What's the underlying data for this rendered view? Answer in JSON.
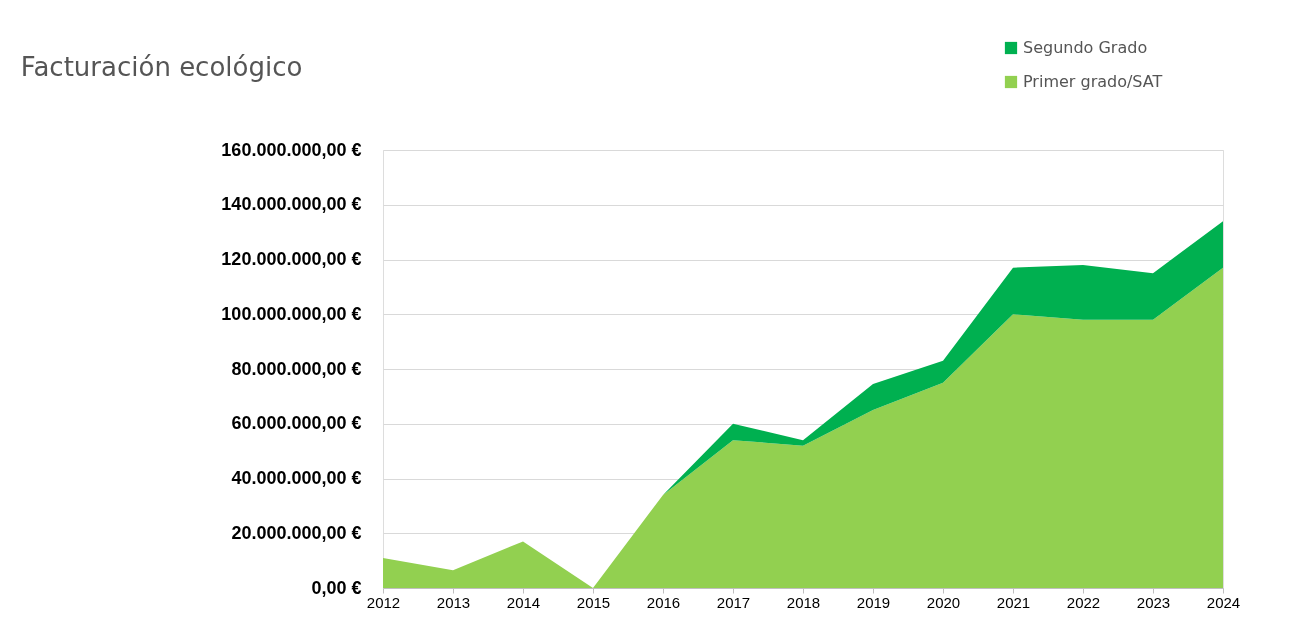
{
  "chart_data": {
    "type": "area",
    "title": "Facturación ecológico",
    "stacked": true,
    "categories": [
      "2012",
      "2013",
      "2014",
      "2015",
      "2016",
      "2017",
      "2018",
      "2019",
      "2020",
      "2021",
      "2022",
      "2023",
      "2024"
    ],
    "series": [
      {
        "name": "Primer grado/SAT",
        "color": "#92d050",
        "values": [
          11000000,
          6500000,
          17000000,
          0,
          34000000,
          54000000,
          52000000,
          65000000,
          75000000,
          100000000,
          98000000,
          98000000,
          117000000
        ]
      },
      {
        "name": "Segundo Grado",
        "color": "#00b050",
        "values": [
          0,
          0,
          0,
          0,
          0,
          6000000,
          2000000,
          9500000,
          8000000,
          17000000,
          20000000,
          17000000,
          17000000
        ]
      }
    ],
    "ylim": [
      0,
      160000000
    ],
    "yticks": [
      {
        "value": 0,
        "label": "0,00 €"
      },
      {
        "value": 20000000,
        "label": "20.000.000,00 €"
      },
      {
        "value": 40000000,
        "label": "40.000.000,00 €"
      },
      {
        "value": 60000000,
        "label": "60.000.000,00 €"
      },
      {
        "value": 80000000,
        "label": "80.000.000,00 €"
      },
      {
        "value": 100000000,
        "label": "100.000.000,00 €"
      },
      {
        "value": 120000000,
        "label": "120.000.000,00 €"
      },
      {
        "value": 140000000,
        "label": "140.000.000,00 €"
      },
      {
        "value": 160000000,
        "label": "160.000.000,00 €"
      }
    ],
    "grid": "y",
    "legend": "top right"
  }
}
